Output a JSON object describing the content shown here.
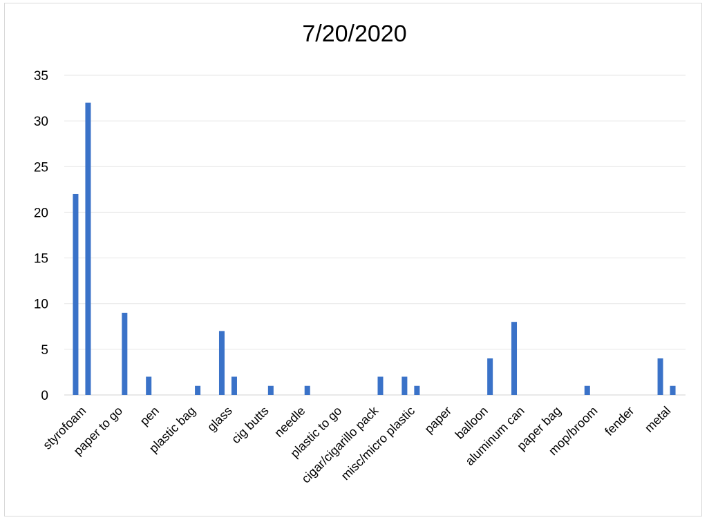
{
  "chart_data": {
    "type": "bar",
    "title": "7/20/2020",
    "xlabel": "",
    "ylabel": "",
    "ylim": [
      0,
      35
    ],
    "yticks": [
      0,
      5,
      10,
      15,
      20,
      25,
      30,
      35
    ],
    "grid": true,
    "legend": "none",
    "bar_color": "#3a72c8",
    "categories": [
      "styrofoam",
      "paper to go",
      "pen",
      "plastic bag",
      "glass",
      "cig butts",
      "needle",
      "plastic to go",
      "cigar/cigarillo pack",
      "misc/micro plastic",
      "paper",
      "balloon",
      "aluminum can",
      "paper bag",
      "mop/broom",
      "fender",
      "metal"
    ],
    "series": [
      {
        "values": [
          22,
          0,
          2,
          0,
          7,
          0,
          0,
          0,
          0,
          2,
          0,
          0,
          8,
          0,
          1,
          0,
          4
        ]
      },
      {
        "values": [
          32,
          9,
          0,
          1,
          2,
          1,
          1,
          0,
          2,
          1,
          0,
          4,
          0,
          0,
          0,
          0,
          1
        ]
      }
    ]
  }
}
